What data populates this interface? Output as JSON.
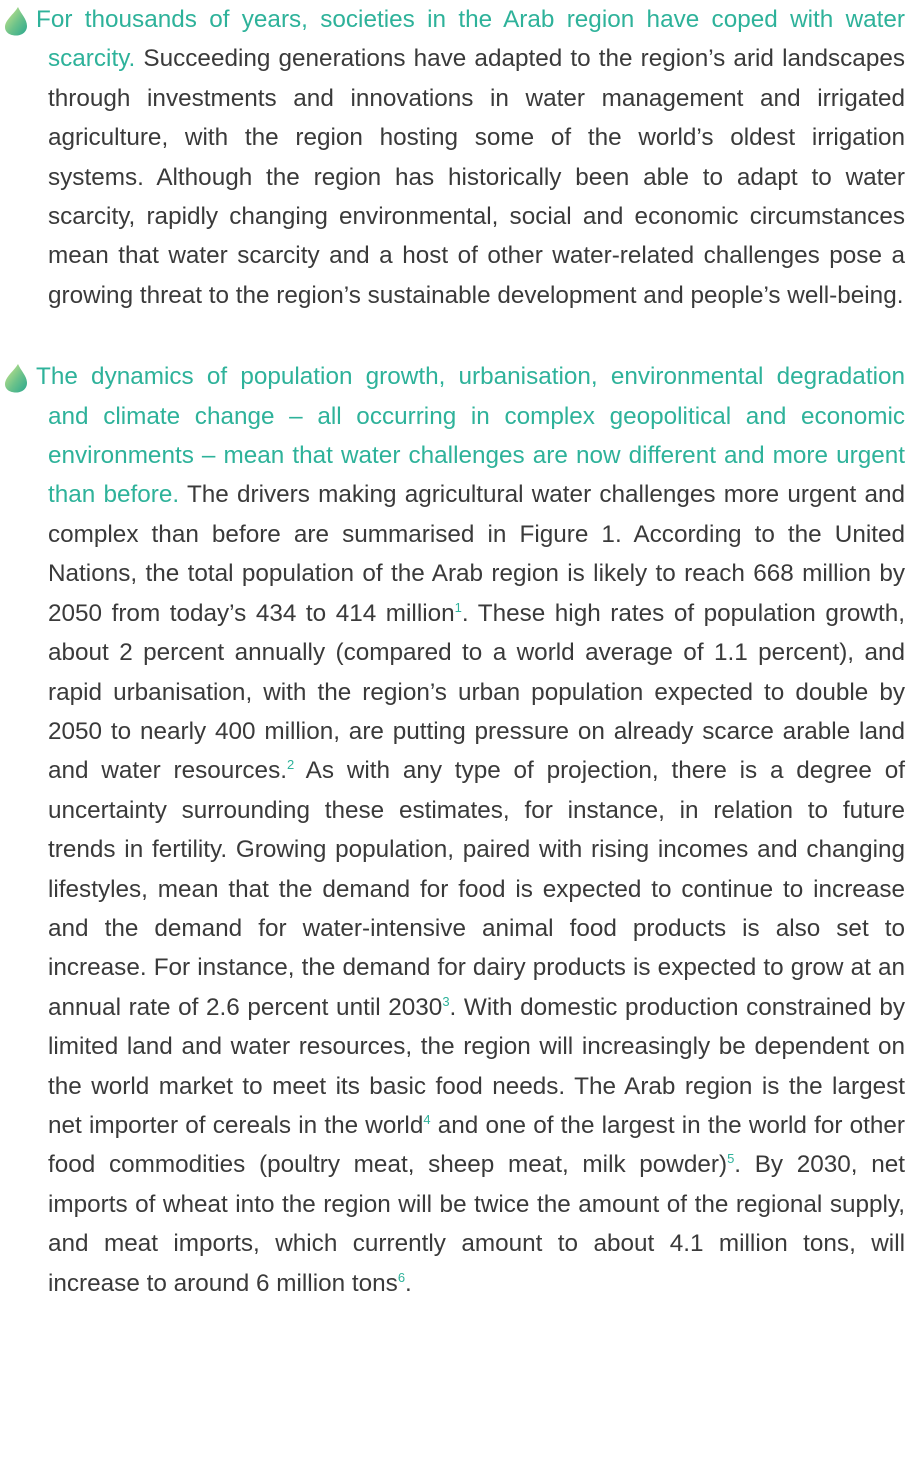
{
  "paragraphs": [
    {
      "lead": "For thousands of years, societies in the Arab region have coped with water scarcity.",
      "segments": [
        {
          "text": "Succeeding generations have adapted to the region’s arid landscapes through investments and innovations in water management and irrigated agriculture, with the region hosting some of the world’s oldest irrigation systems. Although the region has historically been able to adapt to water scarcity, rapidly changing environmental, social and economic circumstances mean that water scarcity and a host of other water-related challenges pose a growing threat to the region’s sustainable development and people’s well-being."
        }
      ]
    },
    {
      "lead": "The dynamics of population growth, urbanisation, environmental degradation and climate change – all occurring in complex geopolitical and economic environments – mean that water challenges are now different and more urgent than before.",
      "segments": [
        {
          "text": "The drivers making agricultural water challenges more urgent and complex than before are summarised in Figure 1. According to the United Nations, the total population of the Arab region is likely to reach 668 million by 2050 from today’s 434 to 414 million"
        },
        {
          "note": "1"
        },
        {
          "text": ". These high rates of population growth, about 2 percent annually (compared to a world average of 1.1 percent), and rapid urbanisation, with the region’s urban population expected to double by 2050 to nearly 400 million, are putting pressure on already scarce arable land and water resources."
        },
        {
          "note": "2"
        },
        {
          "text": " As with any type of projection, there is a degree of uncertainty surrounding these estimates, for instance, in relation to future trends in fertility. Growing population, paired with rising incomes and changing lifestyles, mean that the demand for food is expected to continue to increase and the demand for water-intensive animal food products is also set to increase. For instance, the demand for dairy products is expected to grow at an annual rate of 2.6 percent until 2030"
        },
        {
          "note": "3"
        },
        {
          "text": ". With domestic production constrained by limited land and water resources, the region will increasingly be dependent on the world market to meet its basic food needs. The Arab region is the largest net importer of cereals in the world"
        },
        {
          "note": "4"
        },
        {
          "text": " and one of the largest in the world for other food commodities (poultry meat, sheep meat, milk powder)"
        },
        {
          "note": "5"
        },
        {
          "text": ". By 2030, net imports of wheat into the region will be twice the amount of the regional supply, and meat imports, which currently amount to about 4.1 million tons, will increase to around 6 million tons"
        },
        {
          "note": "6"
        },
        {
          "text": "."
        }
      ]
    }
  ]
}
